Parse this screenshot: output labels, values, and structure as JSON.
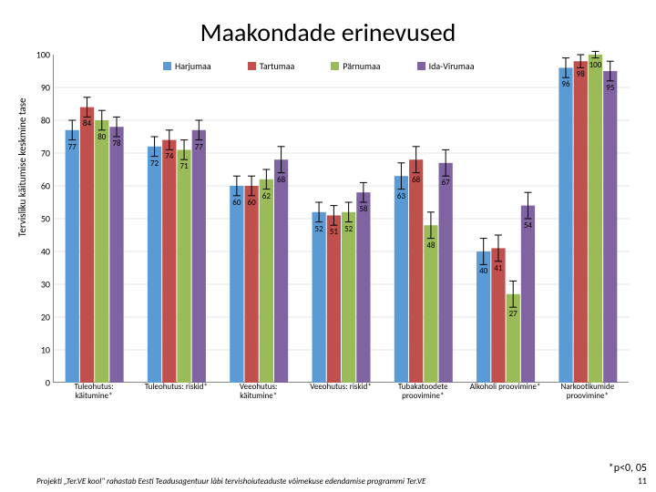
{
  "title": "Maakondade erinevused",
  "ylabel": "Tervisliku käitumise keskmine tase",
  "footer": "Projekti „Ter.VE kool\" rahastab Eesti Teadusagentuur läbi tervishoiuteaduste võimekuse edendamise programmi Ter.VE",
  "pnote": "*p<0, 05",
  "page_number": "11",
  "ylim": [
    0,
    100
  ],
  "ytick_step": 10,
  "background_color": "#ffffff",
  "grid_color": "#cccccc",
  "axis_color": "#888888",
  "series": [
    {
      "name": "Harjumaa",
      "color": "#5b9bd5"
    },
    {
      "name": "Tartumaa",
      "color": "#c0504d"
    },
    {
      "name": "Pärnumaa",
      "color": "#9bbb59"
    },
    {
      "name": "Ida-Virumaa",
      "color": "#8064a2"
    }
  ],
  "categories": [
    {
      "label": "Tuleohutus: käitumine*",
      "values": [
        77,
        84,
        80,
        78
      ],
      "err": [
        3,
        3,
        3,
        3
      ]
    },
    {
      "label": "Tuleohutus: riskid*",
      "values": [
        72,
        74,
        71,
        77
      ],
      "err": [
        3,
        3,
        3,
        3
      ]
    },
    {
      "label": "Veeohutus: käitumine*",
      "values": [
        60,
        60,
        62,
        68
      ],
      "err": [
        3,
        3,
        3,
        4
      ]
    },
    {
      "label": "Veeohutus: riskid*",
      "values": [
        52,
        51,
        52,
        58
      ],
      "err": [
        3,
        3,
        3,
        3
      ]
    },
    {
      "label": "Tubakatoodete proovimine*",
      "values": [
        63,
        68,
        48,
        67
      ],
      "err": [
        4,
        4,
        4,
        4
      ]
    },
    {
      "label": "Alkoholi proovimine*",
      "values": [
        40,
        41,
        27,
        54
      ],
      "err": [
        4,
        4,
        4,
        4
      ]
    },
    {
      "label": "Narkootikumide proovimine*",
      "values": [
        96,
        98,
        100,
        95
      ],
      "err": [
        3,
        2,
        1,
        3
      ]
    }
  ],
  "bar_width": 0.18,
  "group_gap": 0.28,
  "label_fontsize": 9,
  "title_fontsize": 28,
  "error_cap": 4,
  "error_color": "#000000"
}
